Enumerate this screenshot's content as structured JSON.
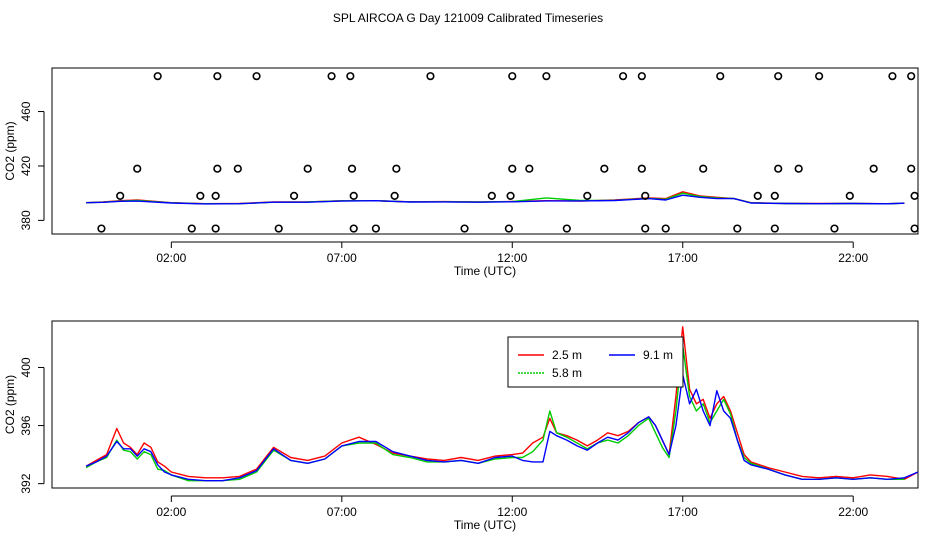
{
  "figure": {
    "title": "SPL AIRCOA G  Day 121009  Calibrated Timeseries"
  },
  "chart_data": [
    {
      "type": "scatter",
      "panel": "top",
      "xlabel": "Time (UTC)",
      "ylabel": "CO2 (ppm)",
      "xlim": [
        -1.5,
        23.9
      ],
      "ylim": [
        370,
        492
      ],
      "x_ticks": [
        2,
        7,
        12,
        17,
        22
      ],
      "x_tick_labels": [
        "02:00",
        "07:00",
        "12:00",
        "17:00",
        "22:00"
      ],
      "y_ticks": [
        380,
        420,
        460
      ],
      "y_tick_labels": [
        "380",
        "420",
        "460"
      ],
      "points": [
        {
          "x": 1.6,
          "y": 486
        },
        {
          "x": 3.35,
          "y": 486
        },
        {
          "x": 4.5,
          "y": 486
        },
        {
          "x": 6.7,
          "y": 486
        },
        {
          "x": 7.25,
          "y": 486
        },
        {
          "x": 9.6,
          "y": 486
        },
        {
          "x": 12.0,
          "y": 486
        },
        {
          "x": 13.0,
          "y": 486
        },
        {
          "x": 15.25,
          "y": 486
        },
        {
          "x": 15.8,
          "y": 486
        },
        {
          "x": 18.1,
          "y": 486
        },
        {
          "x": 19.8,
          "y": 486
        },
        {
          "x": 21.0,
          "y": 486
        },
        {
          "x": 23.15,
          "y": 486
        },
        {
          "x": 23.7,
          "y": 486
        },
        {
          "x": 1.0,
          "y": 418
        },
        {
          "x": 3.35,
          "y": 418
        },
        {
          "x": 3.95,
          "y": 418
        },
        {
          "x": 6.0,
          "y": 418
        },
        {
          "x": 7.3,
          "y": 418
        },
        {
          "x": 8.6,
          "y": 418
        },
        {
          "x": 12.0,
          "y": 418
        },
        {
          "x": 12.5,
          "y": 418
        },
        {
          "x": 14.7,
          "y": 418
        },
        {
          "x": 15.8,
          "y": 418
        },
        {
          "x": 17.6,
          "y": 418
        },
        {
          "x": 19.8,
          "y": 418
        },
        {
          "x": 20.4,
          "y": 418
        },
        {
          "x": 22.6,
          "y": 418
        },
        {
          "x": 23.7,
          "y": 418
        },
        {
          "x": 0.5,
          "y": 398
        },
        {
          "x": 2.85,
          "y": 398
        },
        {
          "x": 3.3,
          "y": 398
        },
        {
          "x": 5.6,
          "y": 398
        },
        {
          "x": 7.35,
          "y": 398
        },
        {
          "x": 8.55,
          "y": 398
        },
        {
          "x": 11.4,
          "y": 398
        },
        {
          "x": 11.95,
          "y": 398
        },
        {
          "x": 14.2,
          "y": 398
        },
        {
          "x": 15.9,
          "y": 398
        },
        {
          "x": 19.2,
          "y": 398
        },
        {
          "x": 19.7,
          "y": 398
        },
        {
          "x": 21.9,
          "y": 398
        },
        {
          "x": 23.8,
          "y": 398
        },
        {
          "x": -0.05,
          "y": 374
        },
        {
          "x": 2.6,
          "y": 374
        },
        {
          "x": 3.3,
          "y": 374
        },
        {
          "x": 5.15,
          "y": 374
        },
        {
          "x": 7.35,
          "y": 374
        },
        {
          "x": 8.0,
          "y": 374
        },
        {
          "x": 10.6,
          "y": 374
        },
        {
          "x": 11.9,
          "y": 374
        },
        {
          "x": 13.6,
          "y": 374
        },
        {
          "x": 15.9,
          "y": 374
        },
        {
          "x": 16.5,
          "y": 374
        },
        {
          "x": 18.6,
          "y": 374
        },
        {
          "x": 19.7,
          "y": 374
        },
        {
          "x": 21.45,
          "y": 374
        },
        {
          "x": 23.8,
          "y": 374
        }
      ],
      "series": [
        {
          "name": "2.5 m",
          "color": "#ff0000",
          "x": [
            -0.5,
            0,
            0.5,
            1,
            2,
            3,
            4,
            5,
            6,
            7,
            8,
            9,
            10,
            11,
            12,
            13,
            14,
            15,
            16,
            16.5,
            17,
            17.5,
            18,
            18.5,
            19,
            20,
            21,
            22,
            23,
            23.5
          ],
          "y": [
            393,
            393.5,
            394.5,
            395,
            393,
            392.3,
            392.4,
            393.5,
            393.6,
            394.5,
            394.5,
            393.7,
            393.8,
            393.6,
            393.9,
            394.5,
            394.2,
            395,
            396.5,
            396,
            401,
            398,
            397,
            396,
            393,
            392.5,
            392.4,
            392.5,
            392.3,
            392.7
          ]
        },
        {
          "name": "5.8 m",
          "color": "#00cc00",
          "x": [
            -0.5,
            0,
            0.5,
            1,
            2,
            3,
            4,
            5,
            6,
            7,
            8,
            9,
            10,
            11,
            12,
            13,
            14,
            15,
            16,
            16.5,
            17,
            17.5,
            18,
            18.5,
            19,
            20,
            21,
            22,
            23,
            23.5
          ],
          "y": [
            393,
            393.4,
            394.2,
            394.6,
            392.9,
            392.2,
            392.3,
            393.4,
            393.5,
            394.4,
            394.5,
            393.6,
            393.7,
            393.5,
            393.8,
            396.5,
            394.6,
            394.8,
            396.2,
            395.5,
            400,
            397.5,
            396.5,
            396,
            392.9,
            392.4,
            392.3,
            392.4,
            392.2,
            392.6
          ]
        },
        {
          "name": "9.1 m",
          "color": "#0000ff",
          "x": [
            -0.5,
            0,
            0.5,
            1,
            2,
            3,
            4,
            5,
            6,
            7,
            8,
            9,
            10,
            11,
            12,
            13,
            14,
            15,
            16,
            16.5,
            17,
            17.5,
            18,
            18.5,
            19,
            20,
            21,
            22,
            23,
            23.5
          ],
          "y": [
            393,
            393.3,
            394,
            394.2,
            392.8,
            392.1,
            392.3,
            393.4,
            393.4,
            394.2,
            394.5,
            393.5,
            393.6,
            393.4,
            393.7,
            394.3,
            394.3,
            394.6,
            396,
            395,
            398.5,
            397,
            396,
            396,
            392.8,
            392.4,
            392.3,
            392.4,
            392.2,
            392.6
          ]
        }
      ]
    },
    {
      "type": "line",
      "panel": "bottom",
      "xlabel": "Time (UTC)",
      "ylabel": "CO2 (ppm)",
      "xlim": [
        -1.5,
        23.9
      ],
      "ylim": [
        391.7,
        403.2
      ],
      "x_ticks": [
        2,
        7,
        12,
        17,
        22
      ],
      "x_tick_labels": [
        "02:00",
        "07:00",
        "12:00",
        "17:00",
        "22:00"
      ],
      "y_ticks": [
        392,
        396,
        400
      ],
      "y_tick_labels": [
        "392",
        "396",
        "400"
      ],
      "legend": {
        "position": "top-right"
      },
      "series": [
        {
          "name": "2.5 m",
          "color": "#ff0000",
          "x": [
            -0.5,
            -0.2,
            0.1,
            0.4,
            0.6,
            0.8,
            1.0,
            1.2,
            1.4,
            1.6,
            1.8,
            2.0,
            2.5,
            3.0,
            3.5,
            4.0,
            4.5,
            5.0,
            5.5,
            6.0,
            6.5,
            7.0,
            7.5,
            8.0,
            8.5,
            9.0,
            9.5,
            10.0,
            10.5,
            11.0,
            11.5,
            12.0,
            12.3,
            12.6,
            12.9,
            13.1,
            13.3,
            13.6,
            13.9,
            14.2,
            14.5,
            14.8,
            15.1,
            15.4,
            15.7,
            16.0,
            16.2,
            16.4,
            16.6,
            16.8,
            17.0,
            17.2,
            17.4,
            17.6,
            17.8,
            18.0,
            18.2,
            18.4,
            18.6,
            18.8,
            19.0,
            19.5,
            20.0,
            20.5,
            21.0,
            21.5,
            22.0,
            22.5,
            23.0,
            23.5,
            23.9
          ],
          "y": [
            393.2,
            393.6,
            394.0,
            395.8,
            394.8,
            394.5,
            394.0,
            394.8,
            394.5,
            393.5,
            393.2,
            392.8,
            392.5,
            392.4,
            392.4,
            392.5,
            393.0,
            394.5,
            393.8,
            393.6,
            393.9,
            394.8,
            395.2,
            394.7,
            394.1,
            393.9,
            393.7,
            393.6,
            393.8,
            393.6,
            393.9,
            394.0,
            394.1,
            394.8,
            395.2,
            396.5,
            395.5,
            395.3,
            395.0,
            394.6,
            395.0,
            395.5,
            395.3,
            395.6,
            396.2,
            396.6,
            396.0,
            395.0,
            394.0,
            398.0,
            402.8,
            398.5,
            397.5,
            397.8,
            396.5,
            397.5,
            398.0,
            397.0,
            395.5,
            394.0,
            393.5,
            393.1,
            392.8,
            392.5,
            392.4,
            392.5,
            392.4,
            392.6,
            392.5,
            392.3,
            392.8
          ]
        },
        {
          "name": "5.8 m",
          "color": "#00cc00",
          "x": [
            -0.5,
            -0.2,
            0.1,
            0.4,
            0.6,
            0.8,
            1.0,
            1.2,
            1.4,
            1.6,
            1.8,
            2.0,
            2.5,
            3.0,
            3.5,
            4.0,
            4.5,
            5.0,
            5.5,
            6.0,
            6.5,
            7.0,
            7.5,
            8.0,
            8.5,
            9.0,
            9.5,
            10.0,
            10.5,
            11.0,
            11.5,
            12.0,
            12.3,
            12.6,
            12.9,
            13.1,
            13.3,
            13.6,
            13.9,
            14.2,
            14.5,
            14.8,
            15.1,
            15.4,
            15.7,
            16.0,
            16.2,
            16.4,
            16.6,
            16.8,
            17.0,
            17.2,
            17.4,
            17.6,
            17.8,
            18.0,
            18.2,
            18.4,
            18.6,
            18.8,
            19.0,
            19.5,
            20.0,
            20.5,
            21.0,
            21.5,
            22.0,
            22.5,
            23.0,
            23.5
          ],
          "y": [
            393.1,
            393.5,
            393.8,
            395.0,
            394.3,
            394.2,
            393.7,
            394.2,
            394.0,
            393.0,
            392.9,
            392.6,
            392.2,
            392.2,
            392.2,
            392.3,
            392.8,
            394.3,
            393.6,
            393.4,
            393.7,
            394.6,
            394.8,
            394.8,
            394.0,
            393.8,
            393.5,
            393.5,
            393.6,
            393.4,
            393.7,
            393.8,
            393.8,
            394.2,
            395.0,
            397.0,
            395.5,
            395.2,
            394.8,
            394.4,
            394.8,
            395.0,
            394.8,
            395.3,
            396.0,
            396.5,
            395.5,
            394.5,
            393.8,
            397.0,
            401.5,
            398.0,
            397.0,
            397.5,
            396.2,
            397.0,
            397.8,
            396.8,
            395.0,
            393.8,
            393.4,
            393.0,
            392.6,
            392.3,
            392.3,
            392.4,
            392.3,
            392.4,
            392.3,
            392.3
          ]
        },
        {
          "name": "9.1 m",
          "color": "#0000ff",
          "x": [
            -0.5,
            -0.2,
            0.1,
            0.4,
            0.6,
            0.8,
            1.0,
            1.2,
            1.4,
            1.6,
            1.8,
            2.0,
            2.5,
            3.0,
            3.5,
            4.0,
            4.5,
            5.0,
            5.5,
            6.0,
            6.5,
            7.0,
            7.5,
            8.0,
            8.5,
            9.0,
            9.5,
            10.0,
            10.5,
            11.0,
            11.5,
            12.0,
            12.3,
            12.6,
            12.9,
            13.1,
            13.3,
            13.6,
            13.9,
            14.2,
            14.5,
            14.8,
            15.1,
            15.4,
            15.7,
            16.0,
            16.2,
            16.4,
            16.6,
            16.8,
            17.0,
            17.2,
            17.4,
            17.6,
            17.8,
            18.0,
            18.2,
            18.4,
            18.6,
            18.8,
            19.0,
            19.5,
            20.0,
            20.5,
            21.0,
            21.5,
            22.0,
            22.5,
            23.0,
            23.5,
            23.9
          ],
          "y": [
            393.2,
            393.5,
            393.9,
            394.9,
            394.4,
            394.4,
            393.9,
            394.4,
            394.2,
            393.3,
            392.8,
            392.6,
            392.3,
            392.2,
            392.2,
            392.4,
            392.9,
            394.4,
            393.6,
            393.4,
            393.7,
            394.6,
            394.9,
            394.9,
            394.2,
            393.9,
            393.6,
            393.5,
            393.6,
            393.4,
            393.8,
            393.9,
            393.6,
            393.5,
            393.5,
            395.6,
            395.3,
            395.0,
            394.6,
            394.3,
            394.8,
            395.2,
            395.0,
            395.5,
            396.2,
            396.6,
            396.0,
            395.0,
            394.0,
            396.0,
            399.5,
            397.5,
            398.5,
            397.0,
            396.0,
            398.4,
            397.0,
            396.5,
            395.0,
            393.6,
            393.3,
            393.0,
            392.6,
            392.3,
            392.3,
            392.4,
            392.3,
            392.4,
            392.3,
            392.4,
            392.8
          ]
        }
      ]
    }
  ]
}
